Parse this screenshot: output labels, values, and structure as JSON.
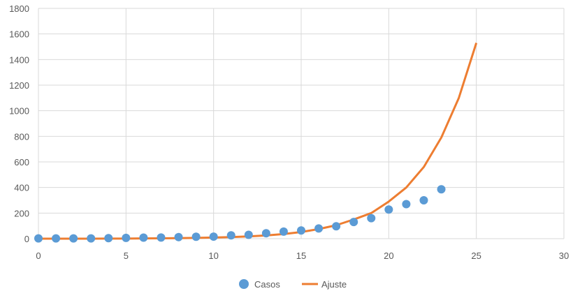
{
  "chart_data": {
    "type": "scatter",
    "title": "",
    "xlabel": "",
    "ylabel": "",
    "xlim": [
      0,
      30
    ],
    "ylim": [
      0,
      1800
    ],
    "xticks": [
      "0",
      "5",
      "10",
      "15",
      "20",
      "25",
      "30"
    ],
    "yticks": [
      "0",
      "200",
      "400",
      "600",
      "800",
      "1000",
      "1200",
      "1400",
      "1600",
      "1800"
    ],
    "grid": true,
    "legend_position": "bottom",
    "series": [
      {
        "name": "Casos",
        "kind": "scatter",
        "color": "#5b9bd5",
        "x": [
          0,
          1,
          2,
          3,
          4,
          5,
          6,
          7,
          8,
          9,
          10,
          11,
          12,
          13,
          14,
          15,
          16,
          17,
          18,
          19,
          20,
          21,
          22,
          23
        ],
        "y": [
          2,
          2,
          2,
          2,
          4,
          6,
          8,
          9,
          12,
          15,
          16,
          26,
          30,
          42,
          55,
          64,
          80,
          97,
          130,
          160,
          228,
          270,
          300,
          386
        ]
      },
      {
        "name": "Ajuste",
        "kind": "line",
        "color": "#ed7d31",
        "x": [
          0,
          1,
          2,
          3,
          4,
          5,
          6,
          7,
          8,
          9,
          10,
          11,
          12,
          13,
          14,
          15,
          16,
          17,
          18,
          19,
          20,
          21,
          22,
          23,
          24,
          25
        ],
        "y": [
          0,
          0,
          0,
          0,
          1,
          1,
          2,
          3,
          4,
          6,
          9,
          12,
          18,
          25,
          36,
          52,
          75,
          105,
          150,
          200,
          290,
          400,
          560,
          790,
          1100,
          1530
        ]
      }
    ]
  }
}
